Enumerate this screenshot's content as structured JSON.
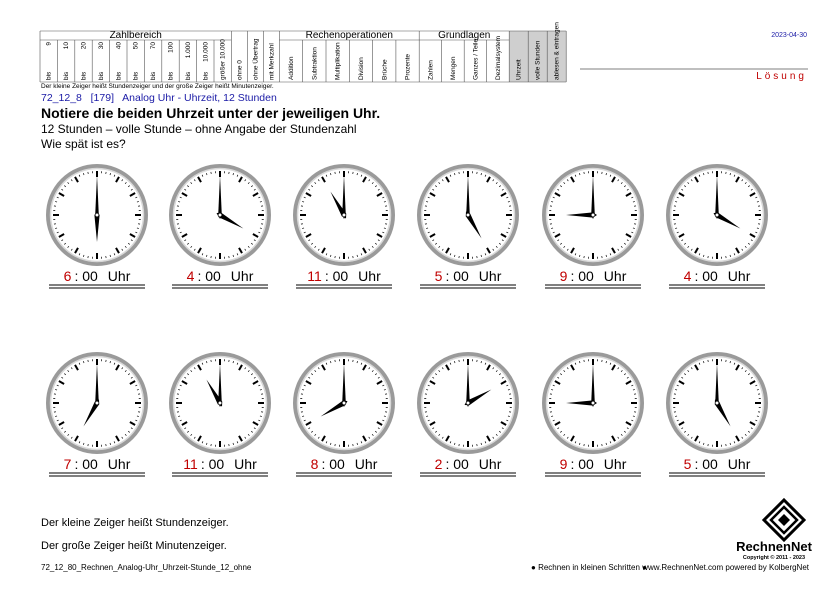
{
  "header": {
    "date": "2023-04-30",
    "solution": "Lösung",
    "sections": [
      {
        "title": "Zahlbereich",
        "columns": [
          {
            "top": "9",
            "bottom": "bis"
          },
          {
            "top": "10",
            "bottom": "bis"
          },
          {
            "top": "20",
            "bottom": "bis"
          },
          {
            "top": "30",
            "bottom": "bis"
          },
          {
            "top": "40",
            "bottom": "bis"
          },
          {
            "top": "50",
            "bottom": "bis"
          },
          {
            "top": "70",
            "bottom": "bis"
          },
          {
            "top": "100",
            "bottom": "bis"
          },
          {
            "top": "1.000",
            "bottom": "bis"
          },
          {
            "top": "10.000",
            "bottom": "bis"
          },
          {
            "bottom": "größer 10.000"
          }
        ]
      },
      {
        "columns": [
          {
            "bottom": "ohne 0"
          },
          {
            "bottom": "ohne Übertrag"
          },
          {
            "bottom": "mit Merkzahl"
          }
        ]
      },
      {
        "title": "Rechenoperationen",
        "columns": [
          {
            "bottom": "Addition"
          },
          {
            "bottom": "Subtraktion"
          },
          {
            "bottom": "Multiplikation"
          },
          {
            "bottom": "Division"
          },
          {
            "bottom": "Brüche"
          },
          {
            "bottom": "Prozente"
          }
        ]
      },
      {
        "title": "Grundlagen",
        "columns": [
          {
            "bottom": "Zahlen"
          },
          {
            "bottom": "Mengen"
          },
          {
            "bottom": "Ganzes / Teile"
          },
          {
            "bottom": "Dezimalsystem"
          }
        ]
      },
      {
        "columns": [
          {
            "bottom": "Uhrzeit"
          },
          {
            "bottom": "volle Stunden"
          },
          {
            "bottom": "ablesen & eintragen"
          }
        ]
      }
    ],
    "note": "Der kleine Zeiger heißt Stundenzeiger und der große Zeiger heißt Minutenzeiger."
  },
  "task": {
    "ref": "72_12_8   [179]   Analog Uhr - Uhrzeit, 12 Stunden",
    "title": "Notiere die beiden Uhrzeit unter der jeweiligen Uhr.",
    "line1": "12 Stunden – volle Stunde – ohne Angabe der Stundenzahl",
    "line2": "Wie spät ist es?"
  },
  "clocks": [
    {
      "hour": 6,
      "rest": ": 00",
      "unit": "Uhr"
    },
    {
      "hour": 4,
      "rest": ": 00",
      "unit": "Uhr"
    },
    {
      "hour": 11,
      "rest": ": 00",
      "unit": "Uhr"
    },
    {
      "hour": 5,
      "rest": ": 00",
      "unit": "Uhr"
    },
    {
      "hour": 9,
      "rest": ": 00",
      "unit": "Uhr"
    },
    {
      "hour": 4,
      "rest": ": 00",
      "unit": "Uhr"
    },
    {
      "hour": 7,
      "rest": ": 00",
      "unit": "Uhr"
    },
    {
      "hour": 11,
      "rest": ": 00",
      "unit": "Uhr"
    },
    {
      "hour": 8,
      "rest": ": 00",
      "unit": "Uhr"
    },
    {
      "hour": 2,
      "rest": ": 00",
      "unit": "Uhr"
    },
    {
      "hour": 9,
      "rest": ": 00",
      "unit": "Uhr"
    },
    {
      "hour": 5,
      "rest": ": 00",
      "unit": "Uhr"
    }
  ],
  "footer": {
    "hint1": "Der kleine Zeiger heißt Stundenzeiger.",
    "hint2": "Der große Zeiger heißt Minutenzeiger.",
    "file": "72_12_80_Rechnen_Analog-Uhr_Uhrzeit-Stunde_12_ohne",
    "motto": "● Rechnen in kleinen Schritten ●",
    "web": "www.RechnenNet.com powered by KolbergNet",
    "brand": "RechnenNet",
    "copyright": "Copyright © 2011 - 2023"
  }
}
